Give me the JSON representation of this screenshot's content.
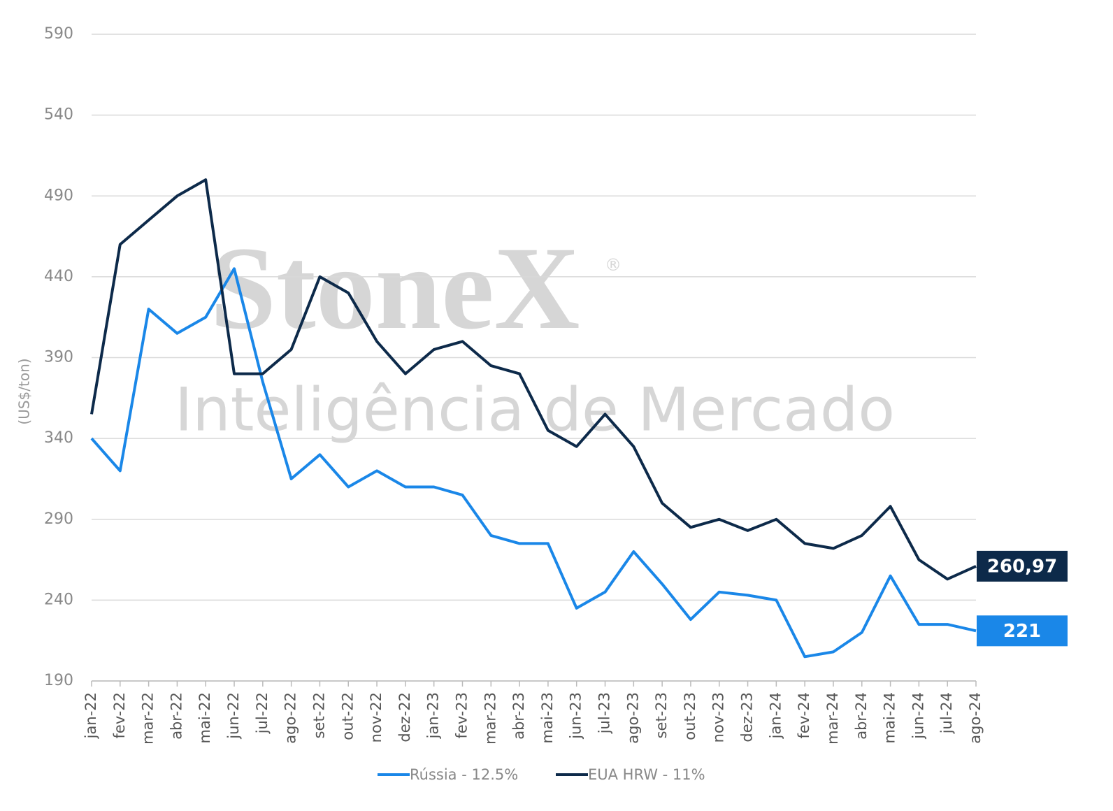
{
  "chart_data": {
    "type": "line",
    "y_label": "(US$/ton)",
    "watermark": "StoneX",
    "watermark_mark": "®",
    "watermark_sub": "Inteligência de Mercado",
    "categories": [
      "jan-22",
      "fev-22",
      "mar-22",
      "abr-22",
      "mai-22",
      "jun-22",
      "jul-22",
      "ago-22",
      "set-22",
      "out-22",
      "nov-22",
      "dez-22",
      "jan-23",
      "fev-23",
      "mar-23",
      "abr-23",
      "mai-23",
      "jun-23",
      "jul-23",
      "ago-23",
      "set-23",
      "out-23",
      "nov-23",
      "dez-23",
      "jan-24",
      "fev-24",
      "mar-24",
      "abr-24",
      "mai-24",
      "jun-24",
      "jul-24",
      "ago-24"
    ],
    "series": [
      {
        "name": "Rússia - 12.5%",
        "color": "#1a87e8",
        "last_label": "221",
        "values": [
          340,
          320,
          420,
          405,
          415,
          445,
          375,
          315,
          330,
          310,
          320,
          310,
          310,
          305,
          280,
          275,
          275,
          235,
          245,
          270,
          250,
          228,
          245,
          243,
          240,
          205,
          208,
          220,
          255,
          225,
          225,
          221
        ]
      },
      {
        "name": "EUA HRW - 11%",
        "color": "#0d2a4a",
        "last_label": "260,97",
        "values": [
          355,
          460,
          475,
          490,
          500,
          380,
          380,
          395,
          440,
          430,
          400,
          380,
          395,
          400,
          385,
          380,
          345,
          335,
          355,
          335,
          300,
          285,
          290,
          283,
          290,
          275,
          272,
          280,
          298,
          265,
          253,
          260.97
        ]
      }
    ],
    "ylim": [
      190,
      590
    ],
    "yticks": [
      190,
      240,
      290,
      340,
      390,
      440,
      490,
      540,
      590
    ],
    "grid": true,
    "legend": "bottom"
  }
}
